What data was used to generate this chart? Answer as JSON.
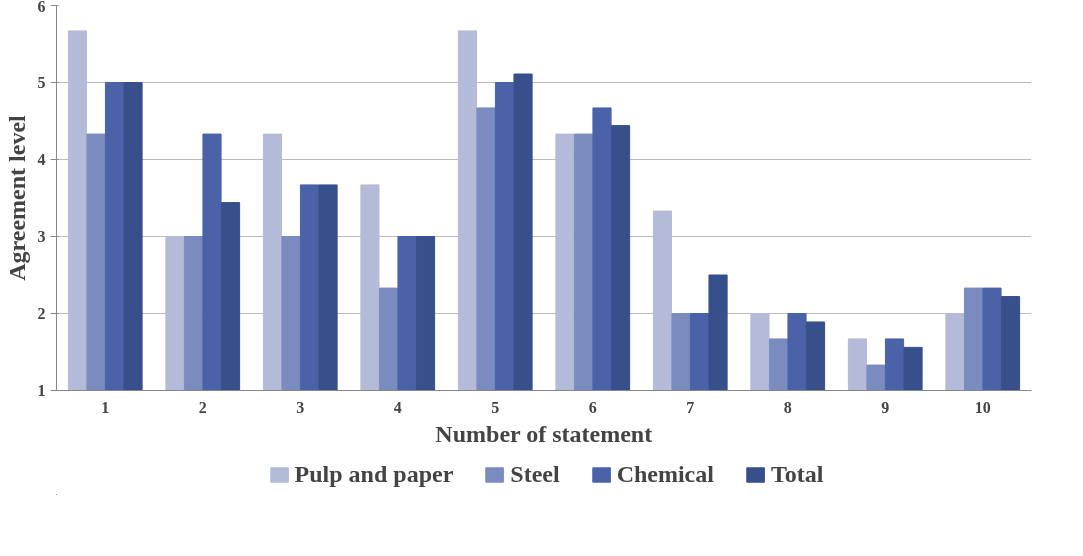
{
  "chart_data": {
    "type": "bar",
    "xlabel": "Number of statement",
    "ylabel": "Agreement level",
    "categories": [
      "1",
      "2",
      "3",
      "4",
      "5",
      "6",
      "7",
      "8",
      "9",
      "10"
    ],
    "series": [
      {
        "name": "Pulp and paper",
        "color": "#b4bbd8",
        "values": [
          5.67,
          3,
          4.33,
          3.67,
          5.67,
          4.33,
          3.33,
          2,
          1.67,
          2
        ]
      },
      {
        "name": "Steel",
        "color": "#7a8bbf",
        "values": [
          4.33,
          3,
          3,
          2.33,
          4.67,
          4.33,
          2,
          1.67,
          1.33,
          2.33
        ]
      },
      {
        "name": "Chemical",
        "color": "#4a63a8",
        "values": [
          5,
          4.33,
          3.67,
          3,
          5,
          4.67,
          2,
          2,
          1.67,
          2.33
        ]
      },
      {
        "name": "Total",
        "color": "#374f8a",
        "values": [
          5,
          3.44,
          3.67,
          3,
          5.11,
          4.44,
          2.5,
          1.89,
          1.56,
          2.22
        ]
      }
    ],
    "ylim": [
      1,
      6
    ],
    "yticks": [
      1,
      2,
      3,
      4,
      5,
      6
    ],
    "grid": "y",
    "legend": "bottom"
  }
}
